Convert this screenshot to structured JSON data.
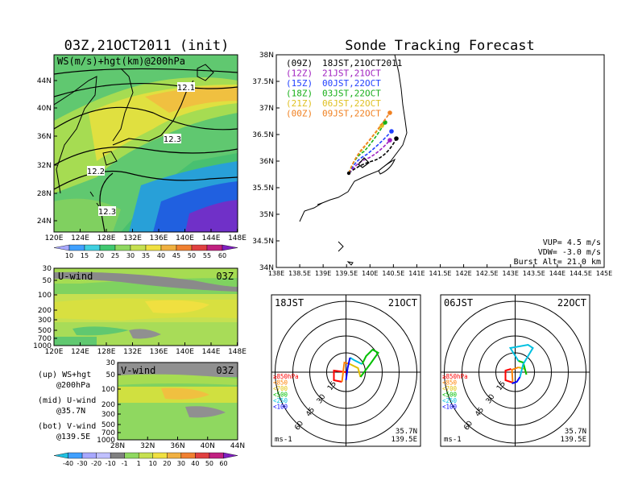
{
  "left": {
    "title": "03Z,21OCT2011 (init)",
    "map": {
      "label": "WS(m/s)+hgt(km)@200hPa",
      "lat_ticks": [
        "44N",
        "40N",
        "36N",
        "32N",
        "28N",
        "24N"
      ],
      "lon_ticks": [
        "120E",
        "124E",
        "128E",
        "132E",
        "136E",
        "140E",
        "144E",
        "148E"
      ],
      "contour_labels": [
        "12.1",
        "12.3",
        "12.2",
        "12.3"
      ]
    },
    "ws_colorbar": [
      "10",
      "15",
      "20",
      "25",
      "30",
      "35",
      "40",
      "45",
      "50",
      "55",
      "60"
    ],
    "uwind": {
      "label": "U-wind",
      "time": "03Z",
      "p_ticks": [
        "30",
        "50",
        "100",
        "200",
        "300",
        "500",
        "700",
        "1000"
      ],
      "lon_ticks": [
        "120E",
        "124E",
        "128E",
        "132E",
        "136E",
        "140E",
        "144E",
        "148E"
      ]
    },
    "vwind": {
      "label": "V-wind",
      "time": "03Z",
      "p_ticks": [
        "30",
        "50",
        "100",
        "200",
        "300",
        "500",
        "700",
        "1000"
      ],
      "lat_ticks": [
        "28N",
        "32N",
        "36N",
        "40N",
        "44N"
      ]
    },
    "legend": [
      {
        "a": "(up) WS+hgt",
        "b": "@200hPa"
      },
      {
        "a": "(mid) U-wind",
        "b": "@35.7N"
      },
      {
        "a": "(bot) V-wind",
        "b": "@139.5E"
      }
    ],
    "wind_colorbar": [
      "-40",
      "-30",
      "-20",
      "-10",
      "-1",
      "1",
      "10",
      "20",
      "30",
      "40",
      "50",
      "60"
    ]
  },
  "right": {
    "title": "Sonde Tracking Forecast",
    "lat_ticks": [
      "38N",
      "37.5N",
      "37N",
      "36.5N",
      "36N",
      "35.5N",
      "35N",
      "34.5N",
      "34N"
    ],
    "lon_ticks": [
      "138E",
      "138.5E",
      "139E",
      "139.5E",
      "140E",
      "140.5E",
      "141E",
      "141.5E",
      "142E",
      "142.5E",
      "143E",
      "143.5E",
      "144E",
      "144.5E",
      "145E"
    ],
    "tracks": [
      {
        "tag": "(09Z)",
        "label": "18JST,21OCT2011",
        "color": "#000000"
      },
      {
        "tag": "(12Z)",
        "label": "21JST,21OCT",
        "color": "#a020c0"
      },
      {
        "tag": "(15Z)",
        "label": "00JST,22OCT",
        "color": "#2040ff"
      },
      {
        "tag": "(18Z)",
        "label": "03JST,22OCT",
        "color": "#18b018"
      },
      {
        "tag": "(21Z)",
        "label": "06JST,22OCT",
        "color": "#e0c020"
      },
      {
        "tag": "(00Z)",
        "label": "09JST,22OCT",
        "color": "#f08020"
      }
    ],
    "params": {
      "vup": "VUP= 4.5 m/s",
      "vdw": "VDW= -3.0 m/s",
      "burst": "Burst Alt= 21.0 km"
    }
  },
  "hodographs": [
    {
      "time": "18JST",
      "date": "21OCT",
      "unit": "ms-1",
      "lat": "35.7N",
      "lon": "139.5E",
      "ring_labels": [
        "15",
        "30",
        "45",
        "60"
      ],
      "levels": [
        {
          "text": "≥850hPa",
          "color": "#ff0000"
        },
        {
          "text": "<850",
          "color": "#ff8000"
        },
        {
          "text": "<700",
          "color": "#e0c000"
        },
        {
          "text": "<500",
          "color": "#00c000"
        },
        {
          "text": "<250",
          "color": "#00c0e0"
        },
        {
          "text": "<100",
          "color": "#0000ff"
        }
      ]
    },
    {
      "time": "06JST",
      "date": "22OCT",
      "unit": "ms-1",
      "lat": "35.7N",
      "lon": "139.5E",
      "ring_labels": [
        "15",
        "30",
        "45",
        "60"
      ],
      "levels": [
        {
          "text": "≥850hPa",
          "color": "#ff0000"
        },
        {
          "text": "<850",
          "color": "#ff8000"
        },
        {
          "text": "<700",
          "color": "#e0c000"
        },
        {
          "text": "<500",
          "color": "#00c000"
        },
        {
          "text": "<250",
          "color": "#00c0e0"
        },
        {
          "text": "<100",
          "color": "#0000ff"
        }
      ]
    }
  ]
}
